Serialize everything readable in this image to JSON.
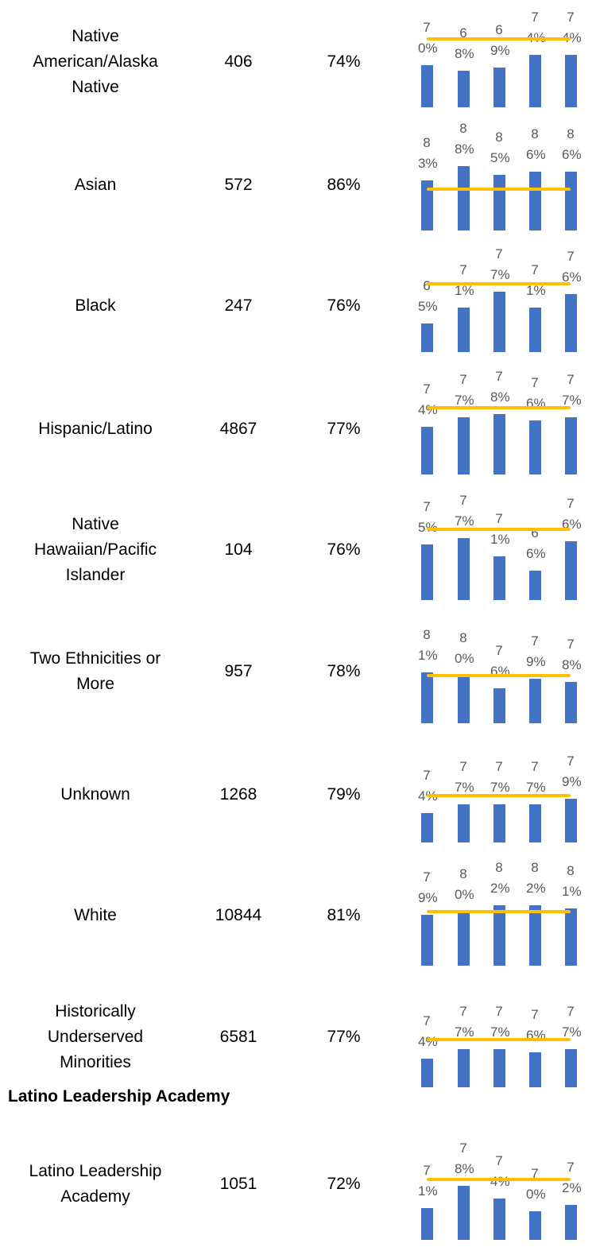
{
  "reference_line": 80,
  "section": "Latino Leadership Academy",
  "rows": [
    {
      "name": "Native American/Alaska Native",
      "count": 406,
      "percent": "74%",
      "values": [
        70,
        68,
        69,
        74,
        74
      ],
      "value_labels": [
        "70%",
        "68%",
        "69%",
        "74%",
        "74%"
      ],
      "ylim": [
        54,
        83
      ]
    },
    {
      "name": "Asian",
      "count": 572,
      "percent": "86%",
      "values": [
        83,
        88,
        85,
        86,
        86
      ],
      "value_labels": [
        "83%",
        "88%",
        "85%",
        "86%",
        "86%"
      ],
      "ylim": [
        66,
        92
      ]
    },
    {
      "name": "Black",
      "count": 247,
      "percent": "76%",
      "values": [
        65,
        71,
        77,
        71,
        76
      ],
      "value_labels": [
        "65%",
        "71%",
        "77%",
        "71%",
        "76%"
      ],
      "ylim": [
        54,
        83
      ]
    },
    {
      "name": "Hispanic/Latino",
      "count": 4867,
      "percent": "77%",
      "values": [
        74,
        77,
        78,
        76,
        77
      ],
      "value_labels": [
        "74%",
        "77%",
        "78%",
        "76%",
        "77%"
      ],
      "ylim": [
        59,
        83
      ]
    },
    {
      "name": "Native Hawaiian/Pacific Islander",
      "count": 104,
      "percent": "76%",
      "values": [
        75,
        77,
        71,
        66,
        76
      ],
      "value_labels": [
        "75%",
        "77%",
        "71%",
        "66%",
        "76%"
      ],
      "ylim": [
        56,
        82
      ]
    },
    {
      "name": "Two Ethnicities or More",
      "count": 957,
      "percent": "78%",
      "values": [
        81,
        80,
        76,
        79,
        78
      ],
      "value_labels": [
        "81%",
        "80%",
        "76%",
        "79%",
        "78%"
      ],
      "ylim": [
        65,
        89
      ]
    },
    {
      "name": "Unknown",
      "count": 1268,
      "percent": "79%",
      "values": [
        74,
        77,
        77,
        77,
        79
      ],
      "value_labels": [
        "74%",
        "77%",
        "77%",
        "77%",
        "79%"
      ],
      "ylim": [
        64,
        90
      ]
    },
    {
      "name": "White",
      "count": 10844,
      "percent": "81%",
      "values": [
        79,
        80,
        82,
        82,
        81
      ],
      "value_labels": [
        "79%",
        "80%",
        "82%",
        "82%",
        "81%"
      ],
      "ylim": [
        63,
        87
      ]
    },
    {
      "name": "Historically Underserved Minorities",
      "count": 6581,
      "percent": "77%",
      "values": [
        74,
        77,
        77,
        76,
        77
      ],
      "value_labels": [
        "74%",
        "77%",
        "77%",
        "76%",
        "77%"
      ],
      "ylim": [
        65,
        89
      ]
    },
    {
      "name": "Latino Leadership Academy",
      "count": 1051,
      "percent": "72%",
      "values": [
        71,
        78,
        74,
        70,
        72
      ],
      "value_labels": [
        "71%",
        "78%",
        "74%",
        "70%",
        "72%"
      ],
      "ylim": [
        61,
        85
      ]
    }
  ]
}
